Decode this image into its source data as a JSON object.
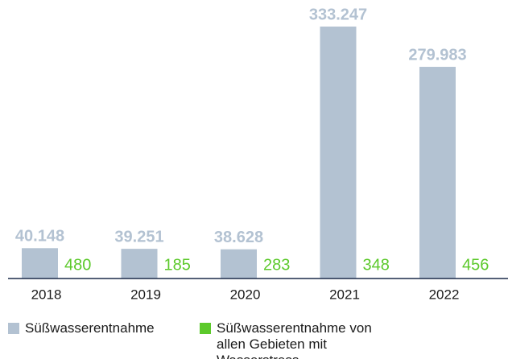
{
  "chart_data": {
    "type": "bar",
    "categories": [
      "2018",
      "2019",
      "2020",
      "2021",
      "2022"
    ],
    "series": [
      {
        "name": "Süßwasserentnahme",
        "color": "#b3c2d2",
        "values": [
          40148,
          39251,
          38628,
          333247,
          279983
        ],
        "value_labels": [
          "40.148",
          "39.251",
          "38.628",
          "333.247",
          "279.983"
        ]
      },
      {
        "name": "Süßwasserentnahme von allen Gebieten mit Wasserstress",
        "color": "#5cc92b",
        "values": [
          480,
          185,
          283,
          348,
          456
        ]
      }
    ]
  }
}
